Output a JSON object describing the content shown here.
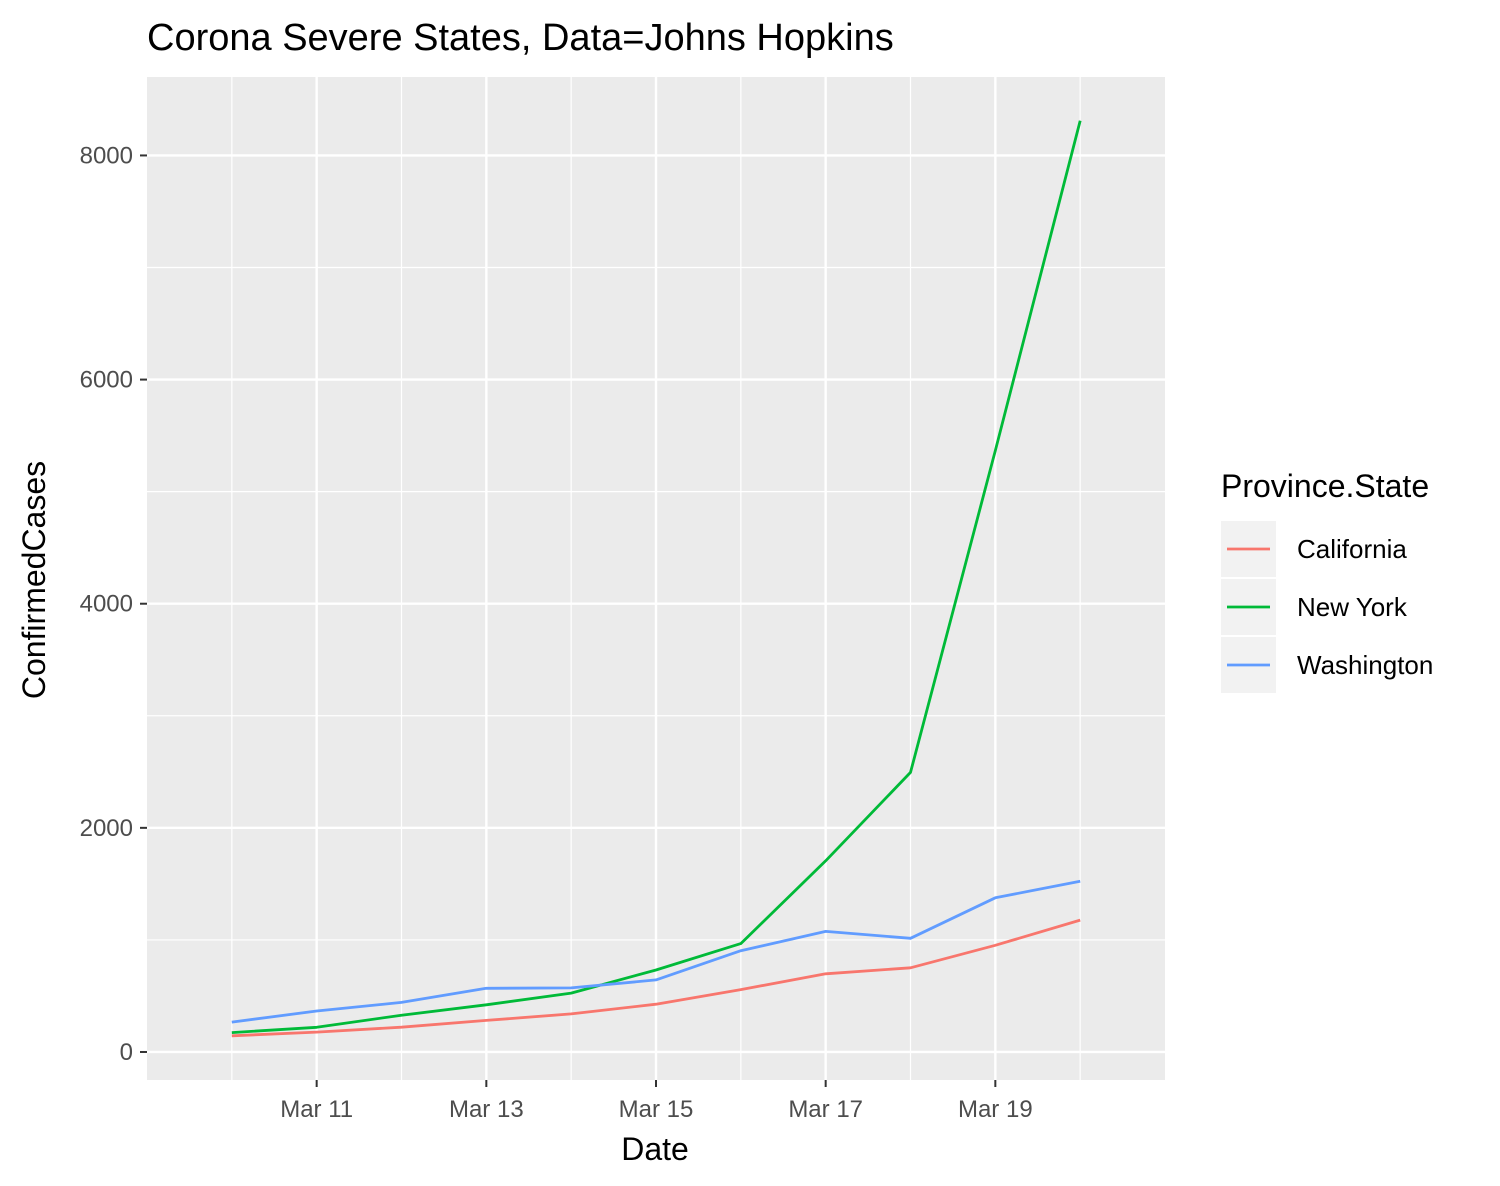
{
  "chart_data": {
    "type": "line",
    "title": "Corona Severe States, Data=Johns Hopkins",
    "xlabel": "Date",
    "ylabel": "ConfirmedCases",
    "x": [
      "2020-03-10",
      "2020-03-11",
      "2020-03-12",
      "2020-03-13",
      "2020-03-14",
      "2020-03-15",
      "2020-03-16",
      "2020-03-17",
      "2020-03-18",
      "2020-03-19",
      "2020-03-20"
    ],
    "x_ticks": [
      {
        "value": "2020-03-11",
        "label": "Mar 11"
      },
      {
        "value": "2020-03-13",
        "label": "Mar 13"
      },
      {
        "value": "2020-03-15",
        "label": "Mar 15"
      },
      {
        "value": "2020-03-17",
        "label": "Mar 17"
      },
      {
        "value": "2020-03-19",
        "label": "Mar 19"
      }
    ],
    "xlim": [
      "2020-03-09",
      "2020-03-21"
    ],
    "ylim": [
      -250,
      8700
    ],
    "y_ticks": [
      0,
      2000,
      4000,
      6000,
      8000
    ],
    "y_tick_labels": [
      "0",
      "2000",
      "4000",
      "6000",
      "8000"
    ],
    "grid": true,
    "legend": {
      "title": "Province.State",
      "position": "right"
    },
    "series": [
      {
        "name": "California",
        "color": "#F8766D",
        "values": [
          144,
          177,
          221,
          282,
          340,
          426,
          557,
          698,
          751,
          952,
          1177
        ]
      },
      {
        "name": "New York",
        "color": "#00BA38",
        "values": [
          173,
          220,
          328,
          421,
          525,
          732,
          967,
          1706,
          2495,
          5365,
          8310
        ]
      },
      {
        "name": "Washington",
        "color": "#619CFF",
        "values": [
          267,
          366,
          442,
          568,
          572,
          643,
          904,
          1076,
          1014,
          1376,
          1524
        ]
      }
    ]
  }
}
